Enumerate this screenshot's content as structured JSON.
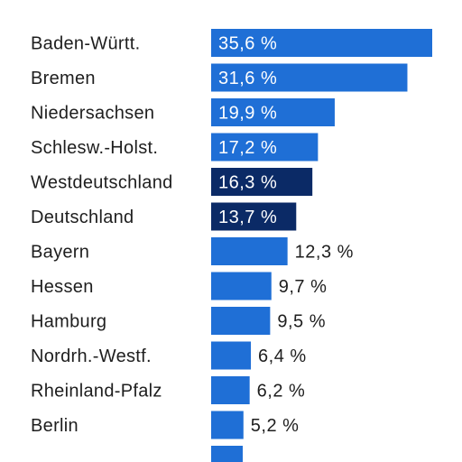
{
  "colors": {
    "default_bar": "#1f6fd6",
    "highlight_bar": "#0b2a66",
    "label_inside": "#ffffff",
    "label_outside": "#1e1e1e",
    "category_text": "#1e1e1e"
  },
  "chart_data": {
    "type": "bar",
    "orientation": "horizontal",
    "title": "",
    "xlabel": "",
    "ylabel": "",
    "xlim": [
      0,
      35.6
    ],
    "grid": false,
    "legend": "none",
    "value_suffix": " %",
    "categories": [
      "Baden-Württ.",
      "Bremen",
      "Niedersachsen",
      "Schlesw.-Holst.",
      "Westdeutschland",
      "Deutschland",
      "Bayern",
      "Hessen",
      "Hamburg",
      "Nordrh.-Westf.",
      "Rheinland-Pfalz",
      "Berlin"
    ],
    "values": [
      35.6,
      31.6,
      19.9,
      17.2,
      16.3,
      13.7,
      12.3,
      9.7,
      9.5,
      6.4,
      6.2,
      5.2
    ],
    "value_labels": [
      "35,6 %",
      "31,6 %",
      "19,9 %",
      "17,2 %",
      "16,3 %",
      "13,7 %",
      "12,3 %",
      "9,7 %",
      "9,5 %",
      "6,4 %",
      "6,2 %",
      "5,2 %"
    ],
    "highlighted": [
      "Westdeutschland",
      "Deutschland"
    ]
  }
}
